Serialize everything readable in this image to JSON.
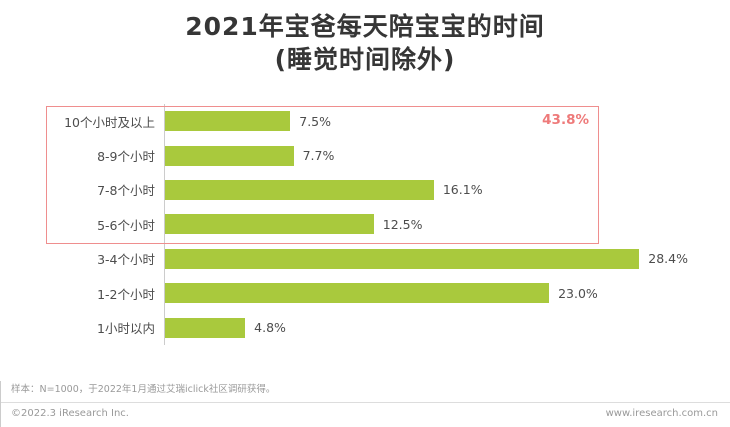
{
  "title": {
    "line1": "2021年宝爸每天陪宝宝的时间",
    "line2": "(睡觉时间除外)"
  },
  "chart_data": {
    "type": "bar",
    "orientation": "horizontal",
    "title": "2021年宝爸每天陪宝宝的时间(睡觉时间除外)",
    "categories": [
      "10个小时及以上",
      "8-9个小时",
      "7-8个小时",
      "5-6个小时",
      "3-4个小时",
      "1-2个小时",
      "1小时以内"
    ],
    "values": [
      7.5,
      7.7,
      16.1,
      12.5,
      28.4,
      23.0,
      4.8
    ],
    "value_labels": [
      "7.5%",
      "7.7%",
      "16.1%",
      "12.5%",
      "28.4%",
      "23.0%",
      "4.8%"
    ],
    "xlabel": "",
    "ylabel": "",
    "xlim": [
      0,
      30
    ],
    "grid": "off",
    "legend": "none",
    "bar_color": "#a9c93d",
    "axis_color": "#cccccc",
    "annotation": {
      "label": "43.8%",
      "color": "#ee7a7a",
      "box_color": "#ef8e8e",
      "rows_covered": [
        "10个小时及以上",
        "8-9个小时",
        "7-8个小时",
        "5-6个小时"
      ]
    }
  },
  "footer": {
    "note": "样本：N=1000，于2022年1月通过艾瑞iclick社区调研获得。",
    "copyright": "©2022.3 iResearch Inc.",
    "website": "www.iresearch.com.cn"
  }
}
